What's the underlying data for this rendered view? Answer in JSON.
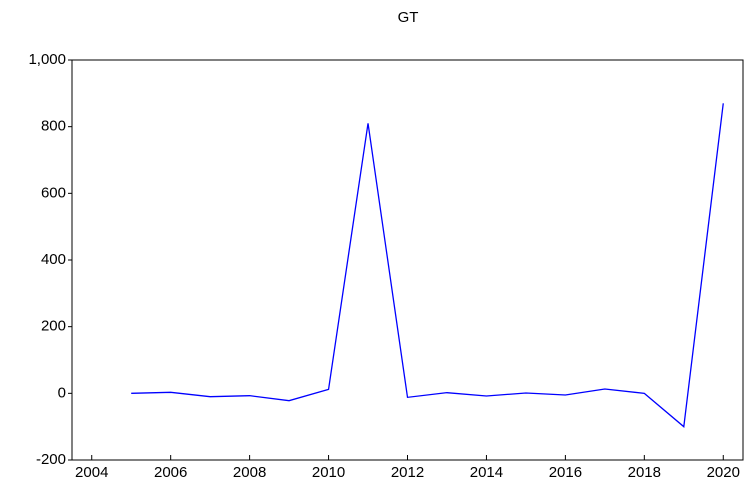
{
  "chart_data": {
    "type": "line",
    "title": "GT",
    "x": [
      2005,
      2006,
      2007,
      2008,
      2009,
      2010,
      2011,
      2012,
      2013,
      2014,
      2015,
      2016,
      2017,
      2018,
      2019,
      2020
    ],
    "series": [
      {
        "name": "GT",
        "color": "#0000ff",
        "values": [
          0,
          3,
          -10,
          -7,
          -22,
          12,
          810,
          -12,
          2,
          -8,
          1,
          -5,
          13,
          0,
          -100,
          870
        ]
      }
    ],
    "xlim": [
      2003.5,
      2020.5
    ],
    "xticks": [
      2004,
      2006,
      2008,
      2010,
      2012,
      2014,
      2016,
      2018,
      2020
    ],
    "ylim": [
      -200,
      1000
    ],
    "yticks": [
      -200,
      0,
      200,
      400,
      600,
      800,
      {
        "value": 1000,
        "label": "1,000"
      }
    ],
    "grid": false
  }
}
